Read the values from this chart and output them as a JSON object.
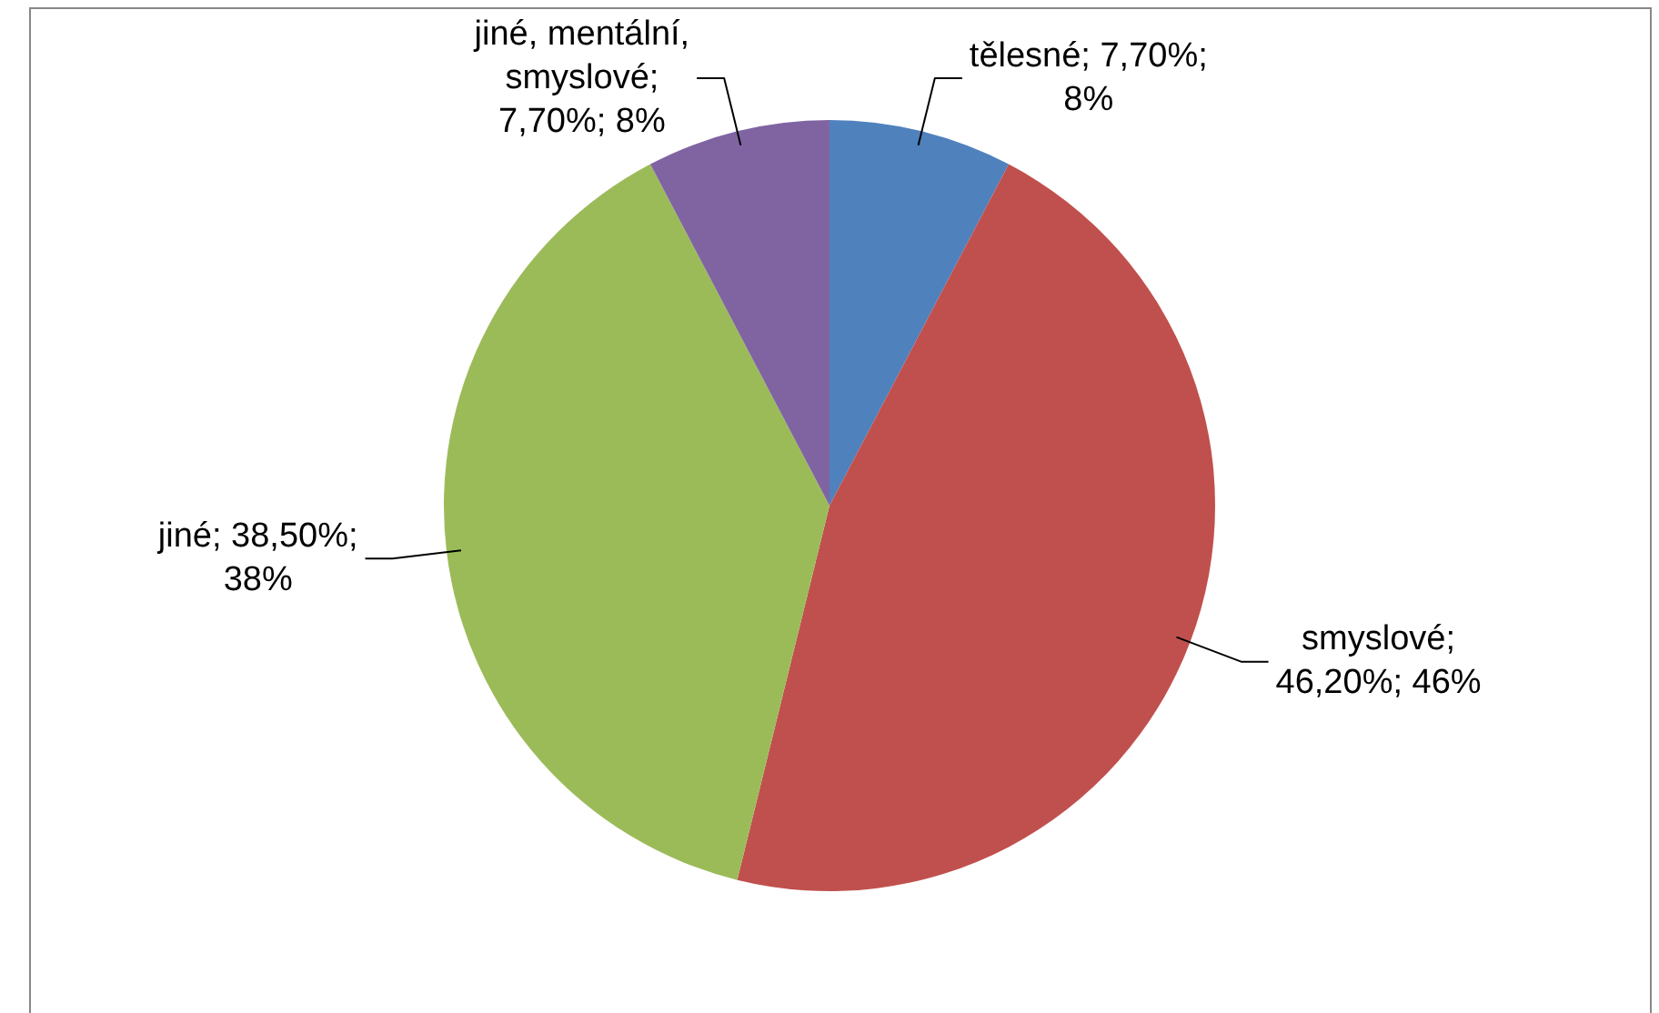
{
  "chart_data": {
    "type": "pie",
    "categories": [
      "tělesné",
      "smyslové",
      "jiné",
      "jiné, mentální, smyslové"
    ],
    "values": [
      7.7,
      46.2,
      38.5,
      7.7
    ],
    "colors": [
      "#4f81bd",
      "#c0504d",
      "#9bbb59",
      "#8064a2"
    ],
    "value_labels": [
      "; 7,70%; 8%",
      "; 46,20%; 46%",
      "; 38,50%; 38%",
      "; 7,70%; 8%"
    ],
    "legend": false
  }
}
